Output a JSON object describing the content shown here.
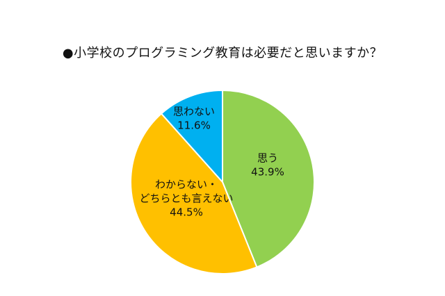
{
  "chart_data": {
    "type": "pie",
    "title": "●小学校のプログラミング教育は必要だと思いますか？",
    "start_angle_deg": 0,
    "direction": "clockwise",
    "slices": [
      {
        "label_lines": [
          "思う"
        ],
        "percent_label": "43.9%",
        "value": 43.9,
        "color": "#92d050"
      },
      {
        "label_lines": [
          "わからない・",
          "どちらとも言えない"
        ],
        "percent_label": "44.5%",
        "value": 44.5,
        "color": "#ffc000"
      },
      {
        "label_lines": [
          "思わない"
        ],
        "percent_label": "11.6%",
        "value": 11.6,
        "color": "#00b0f0"
      }
    ]
  }
}
